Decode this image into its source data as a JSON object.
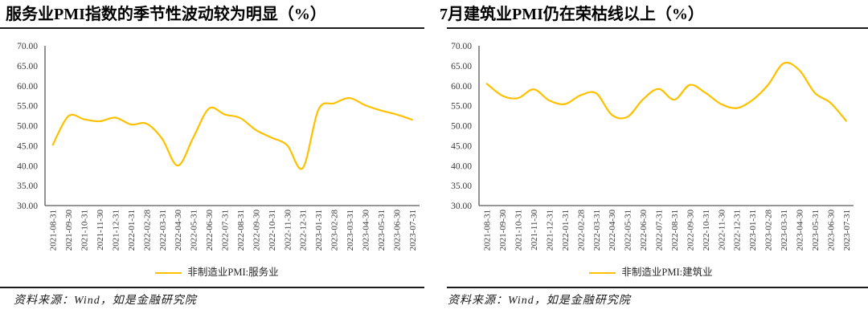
{
  "page": {
    "background": "#ffffff",
    "accent_color": "#FFC000",
    "axis_color": "#595959",
    "text_color": "#3a3a3a"
  },
  "chart_data": [
    {
      "type": "line",
      "title": "服务业PMI指数的季节性波动较为明显（%）",
      "x": [
        "2021-08-31",
        "2021-09-30",
        "2021-10-31",
        "2021-11-30",
        "2021-12-31",
        "2022-01-31",
        "2022-02-28",
        "2022-03-31",
        "2022-04-30",
        "2022-05-31",
        "2022-06-30",
        "2022-07-31",
        "2022-08-31",
        "2022-09-30",
        "2022-10-31",
        "2022-11-30",
        "2022-12-31",
        "2023-01-31",
        "2023-02-28",
        "2023-03-31",
        "2023-04-30",
        "2023-05-31",
        "2023-06-30",
        "2023-07-31"
      ],
      "series": [
        {
          "name": "非制造业PMI:服务业",
          "color": "#FFC000",
          "values": [
            45.2,
            52.4,
            51.6,
            51.1,
            52.0,
            50.3,
            50.5,
            46.7,
            40.0,
            47.1,
            54.3,
            52.8,
            51.9,
            48.9,
            47.0,
            45.1,
            39.4,
            54.0,
            55.6,
            56.9,
            55.1,
            53.8,
            52.8,
            51.5
          ]
        }
      ],
      "ylim": [
        30,
        70
      ],
      "ytick_step": 5,
      "ytick_decimals": 2,
      "grid": false,
      "smooth": true,
      "legend_position": "bottom",
      "source": "资料来源：Wind，如是金融研究院"
    },
    {
      "type": "line",
      "title": "7月建筑业PMI仍在荣枯线以上（%）",
      "x": [
        "2021-08-31",
        "2021-09-30",
        "2021-10-31",
        "2021-11-30",
        "2021-12-31",
        "2022-01-31",
        "2022-02-28",
        "2022-03-31",
        "2022-04-30",
        "2022-05-31",
        "2022-06-30",
        "2022-07-31",
        "2022-08-31",
        "2022-09-30",
        "2022-10-31",
        "2022-11-30",
        "2022-12-31",
        "2023-01-31",
        "2023-02-28",
        "2023-03-31",
        "2023-04-30",
        "2023-05-31",
        "2023-06-30",
        "2023-07-31"
      ],
      "series": [
        {
          "name": "非制造业PMI:建筑业",
          "color": "#FFC000",
          "values": [
            60.5,
            57.5,
            56.9,
            59.1,
            56.3,
            55.4,
            57.6,
            58.1,
            52.7,
            52.2,
            56.6,
            59.2,
            56.5,
            60.2,
            58.2,
            55.4,
            54.4,
            56.4,
            60.2,
            65.6,
            63.9,
            58.2,
            55.7,
            51.2
          ]
        }
      ],
      "ylim": [
        30,
        70
      ],
      "ytick_step": 5,
      "ytick_decimals": 2,
      "grid": false,
      "smooth": true,
      "legend_position": "bottom",
      "source": "资料来源：Wind，如是金融研究院"
    }
  ]
}
